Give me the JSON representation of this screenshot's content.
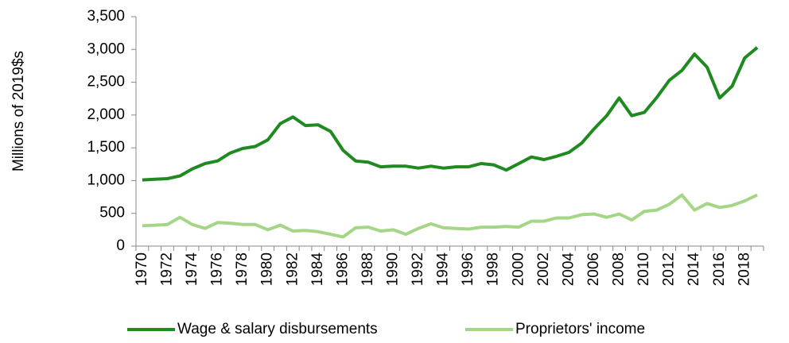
{
  "chart_data": {
    "type": "line",
    "y_label": "Millions of 2019$s",
    "categories": [
      "1970",
      null,
      "1972",
      null,
      "1974",
      null,
      "1976",
      null,
      "1978",
      null,
      "1980",
      null,
      "1982",
      null,
      "1984",
      null,
      "1986",
      null,
      "1988",
      null,
      "1990",
      null,
      "1992",
      null,
      "1994",
      null,
      "1996",
      null,
      "1998",
      null,
      "2000",
      null,
      "2002",
      null,
      "2004",
      null,
      "2006",
      null,
      "2008",
      null,
      "2010",
      null,
      "2012",
      null,
      "2014",
      null,
      "2016",
      null,
      "2018",
      null
    ],
    "series": [
      {
        "name": "Wage & salary disbursements",
        "color": "#1f8a1f",
        "values": [
          1010,
          1020,
          1030,
          1070,
          1180,
          1260,
          1300,
          1420,
          1490,
          1520,
          1620,
          1870,
          1970,
          1840,
          1850,
          1750,
          1460,
          1300,
          1280,
          1210,
          1220,
          1220,
          1190,
          1220,
          1190,
          1210,
          1210,
          1260,
          1240,
          1160,
          1260,
          1360,
          1320,
          1370,
          1430,
          1570,
          1790,
          1990,
          2260,
          1990,
          2040,
          2270,
          2530,
          2680,
          2930,
          2730,
          2260,
          2440,
          2870,
          3030
        ]
      },
      {
        "name": "Proprietors' income",
        "color": "#a5d586",
        "values": [
          310,
          320,
          330,
          440,
          330,
          270,
          360,
          350,
          330,
          330,
          250,
          320,
          230,
          240,
          220,
          180,
          140,
          280,
          290,
          230,
          250,
          180,
          270,
          340,
          280,
          270,
          260,
          290,
          290,
          300,
          290,
          380,
          380,
          430,
          430,
          480,
          490,
          440,
          490,
          400,
          530,
          550,
          640,
          780,
          550,
          650,
          590,
          620,
          690,
          780
        ]
      }
    ],
    "ylim": [
      0,
      3500
    ],
    "yticks": [
      0,
      500,
      {
        "value": 1000,
        "label": "1,000"
      },
      {
        "value": 1500,
        "label": "1,500"
      },
      {
        "value": 2000,
        "label": "2,000"
      },
      {
        "value": 2500,
        "label": "2,500"
      },
      {
        "value": 3000,
        "label": "3,000"
      },
      {
        "value": 3500,
        "label": "3,500"
      }
    ]
  }
}
